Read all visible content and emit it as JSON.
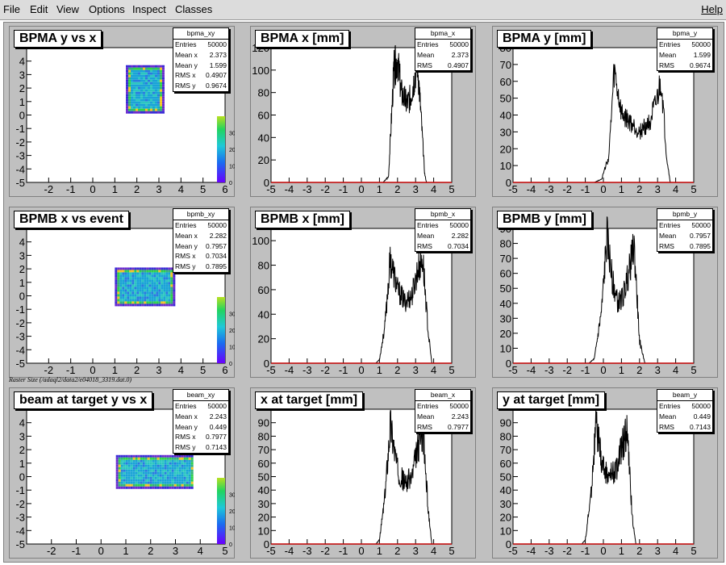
{
  "menu": {
    "items": [
      {
        "label": "File",
        "key": "F"
      },
      {
        "label": "Edit",
        "key": "E"
      },
      {
        "label": "View",
        "key": "V"
      },
      {
        "label": "Options",
        "key": "O"
      },
      {
        "label": "Inspect",
        "key": "I"
      },
      {
        "label": "Classes",
        "key": "C"
      }
    ],
    "help": "Help"
  },
  "caption": "Raster Size (/adaql2/data2/e04018_3319.dat.0)",
  "pads": [
    {
      "id": "bpma-xy",
      "title": "BPMA y vs x",
      "stats": {
        "name": "bpma_xy",
        "rows": [
          [
            "Entries",
            "50000"
          ],
          [
            "Mean x",
            "2.373"
          ],
          [
            "Mean y",
            "1.599"
          ],
          [
            "RMS x",
            "0.4907"
          ],
          [
            "RMS y",
            "0.9674"
          ]
        ]
      }
    },
    {
      "id": "bpma-x",
      "title": "BPMA x [mm]",
      "stats": {
        "name": "bpma_x",
        "rows": [
          [
            "Entries",
            "50000"
          ],
          [
            "Mean",
            "2.373"
          ],
          [
            "RMS",
            "0.4907"
          ]
        ]
      }
    },
    {
      "id": "bpma-y",
      "title": "BPMA y [mm]",
      "stats": {
        "name": "bpma_y",
        "rows": [
          [
            "Entries",
            "50000"
          ],
          [
            "Mean",
            "1.599"
          ],
          [
            "RMS",
            "0.9674"
          ]
        ]
      }
    },
    {
      "id": "bpmb-xy",
      "title": "BPMB x vs event",
      "stats": {
        "name": "bpmb_xy",
        "rows": [
          [
            "Entries",
            "50000"
          ],
          [
            "Mean x",
            "2.282"
          ],
          [
            "Mean y",
            "0.7957"
          ],
          [
            "RMS x",
            "0.7034"
          ],
          [
            "RMS y",
            "0.7895"
          ]
        ]
      }
    },
    {
      "id": "bpmb-x",
      "title": "BPMB x [mm]",
      "stats": {
        "name": "bpmb_x",
        "rows": [
          [
            "Entries",
            "50000"
          ],
          [
            "Mean",
            "2.282"
          ],
          [
            "RMS",
            "0.7034"
          ]
        ]
      }
    },
    {
      "id": "bpmb-y",
      "title": "BPMB y [mm]",
      "stats": {
        "name": "bpmb_y",
        "rows": [
          [
            "Entries",
            "50000"
          ],
          [
            "Mean",
            "0.7957"
          ],
          [
            "RMS",
            "0.7895"
          ]
        ]
      }
    },
    {
      "id": "beam-xy",
      "title": "beam at target y vs x",
      "stats": {
        "name": "beam_xy",
        "rows": [
          [
            "Entries",
            "50000"
          ],
          [
            "Mean x",
            "2.243"
          ],
          [
            "Mean y",
            "0.449"
          ],
          [
            "RMS x",
            "0.7977"
          ],
          [
            "RMS y",
            "0.7143"
          ]
        ]
      }
    },
    {
      "id": "beam-x",
      "title": "x at target [mm]",
      "stats": {
        "name": "beam_x",
        "rows": [
          [
            "Entries",
            "50000"
          ],
          [
            "Mean",
            "2.243"
          ],
          [
            "RMS",
            "0.7977"
          ]
        ]
      }
    },
    {
      "id": "beam-y",
      "title": "y at target [mm]",
      "stats": {
        "name": "beam_y",
        "rows": [
          [
            "Entries",
            "50000"
          ],
          [
            "Mean",
            "0.449"
          ],
          [
            "RMS",
            "0.7143"
          ]
        ]
      }
    }
  ],
  "chart_data": [
    {
      "type": "heatmap",
      "title": "BPMA y vs x",
      "xlim": [
        -3,
        6
      ],
      "ylim": [
        -5,
        5
      ],
      "x_ticks": [
        -2,
        -1,
        0,
        1,
        2,
        3,
        4,
        5,
        6
      ],
      "y_ticks": [
        -5,
        -4,
        -3,
        -2,
        -1,
        0,
        1,
        2,
        3,
        4
      ],
      "region": {
        "x": [
          1.5,
          3.2
        ],
        "y": [
          0.2,
          3.7
        ]
      },
      "color_scale_ticks": [
        0,
        10,
        20,
        30
      ]
    },
    {
      "type": "line",
      "title": "BPMA x [mm]",
      "xlim": [
        -5,
        5
      ],
      "ylim": [
        0,
        120
      ],
      "x_ticks": [
        -5,
        -4,
        -3,
        -2,
        -1,
        0,
        1,
        2,
        3,
        4,
        5
      ],
      "y_ticks": [
        0,
        20,
        40,
        60,
        80,
        100,
        120
      ],
      "x": [
        1.2,
        1.5,
        1.8,
        2.0,
        2.2,
        2.5,
        2.7,
        2.9,
        3.1,
        3.3,
        3.5,
        3.6
      ],
      "y": [
        0,
        5,
        100,
        110,
        80,
        70,
        75,
        90,
        108,
        60,
        8,
        0
      ]
    },
    {
      "type": "line",
      "title": "BPMA y [mm]",
      "xlim": [
        -5,
        5
      ],
      "ylim": [
        0,
        80
      ],
      "x_ticks": [
        -5,
        -4,
        -3,
        -2,
        -1,
        0,
        1,
        2,
        3,
        4,
        5
      ],
      "y_ticks": [
        0,
        10,
        20,
        30,
        40,
        50,
        60,
        70,
        80
      ],
      "x": [
        -0.5,
        -0.1,
        0.3,
        0.6,
        1.0,
        1.5,
        2.0,
        2.5,
        2.9,
        3.2,
        3.5,
        3.7
      ],
      "y": [
        0,
        2,
        15,
        65,
        40,
        35,
        30,
        35,
        45,
        60,
        15,
        0
      ]
    },
    {
      "type": "heatmap",
      "title": "BPMB x vs event",
      "xlim": [
        -3,
        6
      ],
      "ylim": [
        -5,
        5
      ],
      "x_ticks": [
        -2,
        -1,
        0,
        1,
        2,
        3,
        4,
        5,
        6
      ],
      "y_ticks": [
        -5,
        -4,
        -3,
        -2,
        -1,
        0,
        1,
        2,
        3,
        4
      ],
      "region": {
        "x": [
          1.0,
          3.7
        ],
        "y": [
          -0.6,
          2.1
        ]
      },
      "color_scale_ticks": [
        0,
        10,
        20,
        30
      ]
    },
    {
      "type": "line",
      "title": "BPMB x [mm]",
      "xlim": [
        -5,
        5
      ],
      "ylim": [
        0,
        110
      ],
      "x_ticks": [
        -5,
        -4,
        -3,
        -2,
        -1,
        0,
        1,
        2,
        3,
        4,
        5
      ],
      "y_ticks": [
        0,
        20,
        40,
        60,
        80,
        100
      ],
      "x": [
        0.8,
        1.0,
        1.3,
        1.6,
        2.0,
        2.4,
        2.8,
        3.1,
        3.4,
        3.7,
        3.9
      ],
      "y": [
        0,
        3,
        30,
        85,
        60,
        50,
        55,
        75,
        85,
        25,
        0
      ]
    },
    {
      "type": "line",
      "title": "BPMB y [mm]",
      "xlim": [
        -5,
        5
      ],
      "ylim": [
        0,
        90
      ],
      "x_ticks": [
        -5,
        -4,
        -3,
        -2,
        -1,
        0,
        1,
        2,
        3,
        4,
        5
      ],
      "y_ticks": [
        0,
        10,
        20,
        30,
        40,
        50,
        60,
        70,
        80,
        90
      ],
      "x": [
        -0.8,
        -0.5,
        -0.1,
        0.2,
        0.5,
        0.8,
        1.1,
        1.4,
        1.7,
        2.0,
        2.3
      ],
      "y": [
        0,
        3,
        35,
        85,
        55,
        40,
        45,
        60,
        78,
        15,
        0
      ]
    },
    {
      "type": "heatmap",
      "title": "beam at target y vs x",
      "xlim": [
        -3,
        5
      ],
      "ylim": [
        -5,
        5
      ],
      "x_ticks": [
        -2,
        -1,
        0,
        1,
        2,
        3,
        4,
        5
      ],
      "y_ticks": [
        -5,
        -4,
        -3,
        -2,
        -1,
        0,
        1,
        2,
        3,
        4
      ],
      "region": {
        "x": [
          0.6,
          3.7
        ],
        "y": [
          -0.8,
          1.6
        ]
      },
      "color_scale_ticks": [
        0,
        10,
        20,
        30
      ]
    },
    {
      "type": "line",
      "title": "x at target [mm]",
      "xlim": [
        -5,
        5
      ],
      "ylim": [
        0,
        100
      ],
      "x_ticks": [
        -5,
        -4,
        -3,
        -2,
        -1,
        0,
        1,
        2,
        3,
        4,
        5
      ],
      "y_ticks": [
        0,
        10,
        20,
        30,
        40,
        50,
        60,
        70,
        80,
        90
      ],
      "x": [
        0.8,
        1.0,
        1.3,
        1.6,
        2.0,
        2.4,
        2.8,
        3.1,
        3.4,
        3.7,
        3.9
      ],
      "y": [
        0,
        3,
        35,
        90,
        55,
        45,
        50,
        70,
        85,
        25,
        0
      ]
    },
    {
      "type": "line",
      "title": "y at target [mm]",
      "xlim": [
        -5,
        5
      ],
      "ylim": [
        0,
        100
      ],
      "x_ticks": [
        -5,
        -4,
        -3,
        -2,
        -1,
        0,
        1,
        2,
        3,
        4,
        5
      ],
      "y_ticks": [
        0,
        10,
        20,
        30,
        40,
        50,
        60,
        70,
        80,
        90
      ],
      "x": [
        -1.2,
        -1.0,
        -0.7,
        -0.4,
        -0.1,
        0.3,
        0.7,
        1.0,
        1.3,
        1.6,
        1.8
      ],
      "y": [
        0,
        3,
        35,
        90,
        60,
        50,
        55,
        70,
        85,
        20,
        0
      ]
    }
  ]
}
